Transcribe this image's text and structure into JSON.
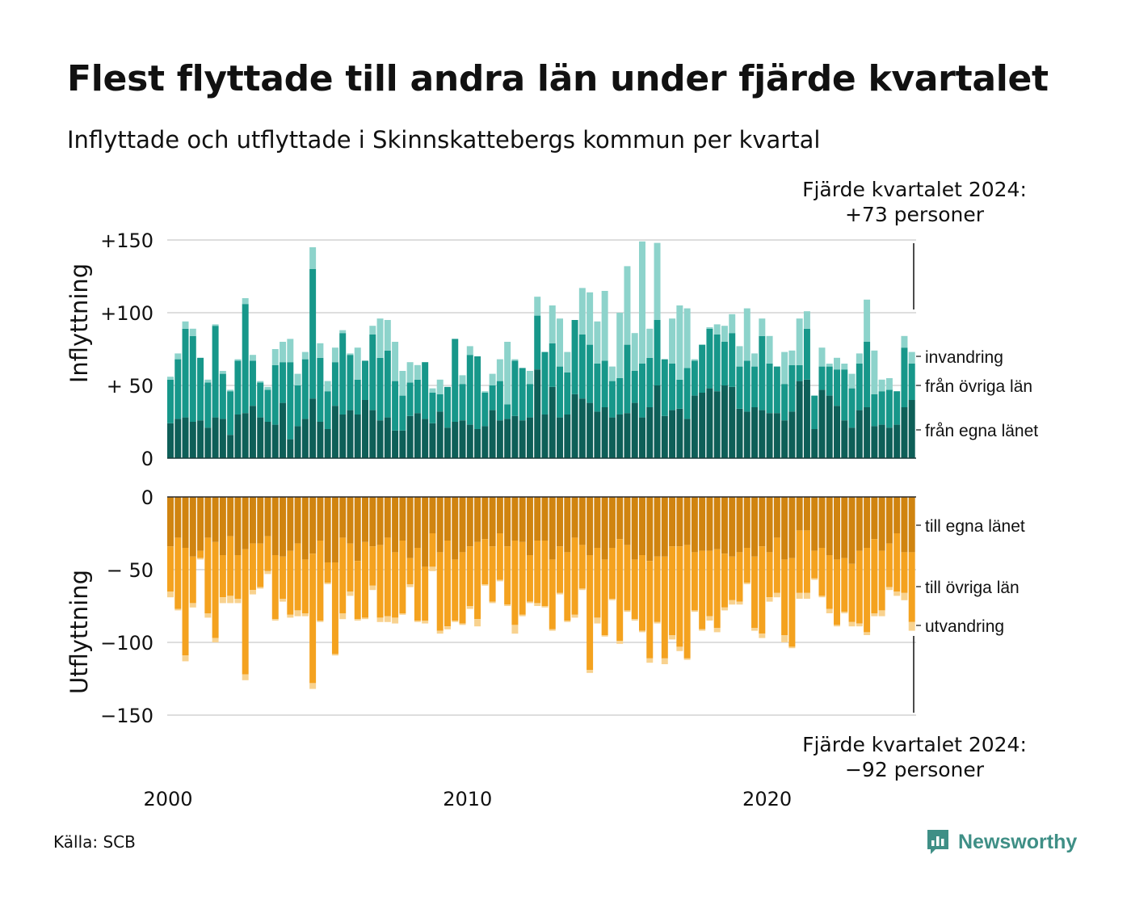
{
  "title": "Flest flyttade till andra län under fjärde kvartalet",
  "subtitle": "Inflyttade och utflyttade i Skinnskattebergs kommun per kvartal",
  "source": "Källa: SCB",
  "brand": "Newsworthy",
  "colors": {
    "in_egna": "#0e5f58",
    "in_ovriga": "#17978a",
    "in_invandring": "#8dd3cb",
    "ut_egna": "#d08410",
    "ut_ovriga": "#f4a21f",
    "ut_utvandring": "#f8d28f",
    "brand": "#3f8f86"
  },
  "chart_data": {
    "type": "bar",
    "stacked": true,
    "mirrored": true,
    "quarters_start": "2000 Q1",
    "quarters_end": "2024 Q4",
    "x_ticks": [
      "2000",
      "2010",
      "2020"
    ],
    "top_panel": {
      "ylabel": "Inflyttning",
      "ylim": [
        0,
        150
      ],
      "tick_labels": [
        "0",
        "+ 50",
        "+100",
        "+150"
      ],
      "tick_values": [
        0,
        50,
        100,
        150
      ],
      "series": [
        {
          "name": "från egna länet",
          "values": [
            24,
            27,
            28,
            25,
            26,
            21,
            28,
            27,
            16,
            30,
            31,
            36,
            28,
            25,
            23,
            38,
            13,
            22,
            27,
            41,
            25,
            20,
            36,
            30,
            33,
            30,
            40,
            33,
            26,
            28,
            19,
            19,
            29,
            31,
            27,
            24,
            32,
            21,
            25,
            26,
            23,
            20,
            22,
            33,
            26,
            27,
            29,
            26,
            28,
            61,
            30,
            49,
            28,
            30,
            44,
            41,
            38,
            32,
            35,
            28,
            30,
            31,
            38,
            28,
            35,
            50,
            29,
            33,
            34,
            27,
            43,
            45,
            48,
            46,
            50,
            49,
            34,
            32,
            35,
            33,
            31,
            31,
            26,
            32,
            53,
            54,
            20,
            47,
            43,
            36,
            26,
            21,
            33,
            35,
            22,
            23,
            21,
            23,
            35,
            40
          ]
        },
        {
          "name": "från övriga län",
          "values": [
            30,
            41,
            61,
            59,
            43,
            31,
            63,
            31,
            30,
            37,
            75,
            31,
            24,
            22,
            41,
            28,
            53,
            28,
            41,
            89,
            44,
            26,
            30,
            56,
            38,
            24,
            27,
            52,
            43,
            46,
            34,
            24,
            23,
            23,
            39,
            21,
            12,
            28,
            57,
            25,
            48,
            50,
            23,
            17,
            27,
            10,
            38,
            36,
            23,
            37,
            43,
            30,
            35,
            29,
            51,
            44,
            40,
            33,
            32,
            25,
            25,
            47,
            22,
            37,
            34,
            45,
            39,
            32,
            20,
            35,
            24,
            33,
            41,
            39,
            30,
            37,
            29,
            35,
            28,
            51,
            34,
            32,
            25,
            32,
            11,
            35,
            23,
            16,
            20,
            25,
            35,
            27,
            32,
            45,
            22,
            23,
            26,
            23,
            41,
            25
          ]
        },
        {
          "name": "invandring",
          "values": [
            2,
            4,
            5,
            5,
            0,
            2,
            1,
            2,
            1,
            1,
            4,
            4,
            1,
            2,
            11,
            14,
            16,
            8,
            5,
            15,
            10,
            7,
            10,
            2,
            1,
            22,
            0,
            6,
            27,
            21,
            27,
            17,
            14,
            10,
            0,
            3,
            10,
            0,
            0,
            6,
            6,
            0,
            1,
            8,
            15,
            43,
            1,
            0,
            9,
            13,
            0,
            26,
            33,
            14,
            0,
            32,
            36,
            29,
            48,
            10,
            45,
            54,
            26,
            84,
            20,
            53,
            0,
            31,
            51,
            41,
            1,
            0,
            1,
            7,
            11,
            13,
            14,
            36,
            9,
            12,
            19,
            0,
            22,
            10,
            32,
            12,
            0,
            13,
            2,
            8,
            4,
            10,
            7,
            29,
            30,
            8,
            8,
            0,
            8,
            8
          ]
        }
      ],
      "labels_right": [
        "invandring",
        "från övriga län",
        "från egna länet"
      ]
    },
    "bottom_panel": {
      "ylabel": "Utflyttning",
      "ylim": [
        -150,
        0
      ],
      "tick_labels": [
        "0",
        "− 50",
        "−100",
        "−150"
      ],
      "tick_values": [
        0,
        -50,
        -100,
        -150
      ],
      "series": [
        {
          "name": "till egna länet",
          "values": [
            -34,
            -28,
            -35,
            -41,
            -37,
            -28,
            -31,
            -40,
            -27,
            -40,
            -36,
            -32,
            -32,
            -27,
            -40,
            -41,
            -37,
            -32,
            -43,
            -39,
            -30,
            -45,
            -45,
            -28,
            -32,
            -44,
            -31,
            -34,
            -33,
            -28,
            -38,
            -30,
            -42,
            -35,
            -48,
            -25,
            -38,
            -30,
            -43,
            -38,
            -34,
            -31,
            -29,
            -34,
            -25,
            -34,
            -30,
            -31,
            -40,
            -30,
            -30,
            -43,
            -34,
            -38,
            -28,
            -33,
            -40,
            -35,
            -43,
            -35,
            -29,
            -33,
            -43,
            -40,
            -44,
            -41,
            -41,
            -34,
            -34,
            -33,
            -38,
            -37,
            -37,
            -36,
            -39,
            -41,
            -38,
            -35,
            -41,
            -34,
            -38,
            -28,
            -43,
            -42,
            -23,
            -23,
            -37,
            -35,
            -40,
            -43,
            -42,
            -46,
            -37,
            -35,
            -29,
            -37,
            -32,
            -25,
            -38,
            -38
          ]
        },
        {
          "name": "till övriga län",
          "values": [
            -31,
            -49,
            -74,
            -32,
            -5,
            -52,
            -66,
            -29,
            -41,
            -30,
            -86,
            -32,
            -30,
            -24,
            -44,
            -29,
            -44,
            -46,
            -37,
            -89,
            -55,
            -14,
            -63,
            -52,
            -33,
            -40,
            -52,
            -27,
            -50,
            -54,
            -45,
            -50,
            -18,
            -50,
            -37,
            -23,
            -54,
            -59,
            -42,
            -49,
            -41,
            -53,
            -31,
            -38,
            -32,
            -40,
            -58,
            -50,
            -32,
            -43,
            -45,
            -48,
            -32,
            -47,
            -53,
            -30,
            -79,
            -48,
            -52,
            -35,
            -70,
            -45,
            -41,
            -52,
            -67,
            -45,
            -70,
            -61,
            -69,
            -78,
            -40,
            -54,
            -45,
            -54,
            -37,
            -30,
            -34,
            -24,
            -49,
            -60,
            -31,
            -38,
            -52,
            -61,
            -43,
            -43,
            -19,
            -33,
            -37,
            -45,
            -37,
            -40,
            -50,
            -58,
            -51,
            -41,
            -30,
            -40,
            -28,
            -48
          ]
        },
        {
          "name": "utvandring",
          "values": [
            -4,
            -1,
            -4,
            -3,
            -1,
            -3,
            -3,
            -4,
            -5,
            -3,
            -4,
            -3,
            -1,
            -2,
            -1,
            -2,
            -2,
            -4,
            -2,
            -4,
            -1,
            -1,
            -1,
            -4,
            -3,
            -1,
            -1,
            -3,
            -3,
            -4,
            -4,
            -1,
            -2,
            -1,
            -2,
            -3,
            -2,
            -2,
            -1,
            -1,
            -2,
            -5,
            -1,
            -1,
            -1,
            -1,
            -6,
            -1,
            -1,
            -2,
            -1,
            -1,
            -1,
            -1,
            -2,
            -1,
            -2,
            -4,
            -1,
            -1,
            -2,
            -1,
            -1,
            -1,
            -3,
            -1,
            -4,
            -3,
            -3,
            -1,
            -1,
            -1,
            -3,
            -3,
            -2,
            -3,
            -2,
            -1,
            -2,
            -3,
            -3,
            -3,
            -5,
            -1,
            -4,
            -4,
            -1,
            -1,
            -3,
            -1,
            -1,
            -3,
            -2,
            -2,
            -2,
            -4,
            -2,
            -3,
            -5,
            -6
          ]
        }
      ],
      "labels_right": [
        "till egna länet",
        "till övriga län",
        "utvandring"
      ]
    },
    "annotations": {
      "top_line1": "Fjärde kvartalet 2024:",
      "top_line2": "+73 personer",
      "bottom_line1": "Fjärde kvartalet 2024:",
      "bottom_line2": "−92 personer"
    }
  }
}
